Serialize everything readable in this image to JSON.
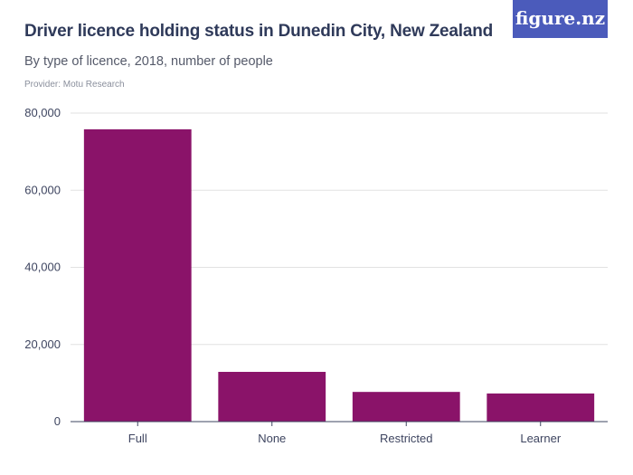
{
  "header": {
    "title": "Driver licence holding status in Dunedin City, New Zealand",
    "subtitle": "By type of licence, 2018, number of people",
    "provider": "Provider: Motu Research",
    "logo": "figure.nz"
  },
  "colors": {
    "bar": "#8a1369",
    "grid": "#e2e2e2",
    "axis": "#3e4560",
    "logo_bg": "#4b5bbb"
  },
  "chart_data": {
    "type": "bar",
    "categories": [
      "Full",
      "None",
      "Restricted",
      "Learner"
    ],
    "values": [
      75800,
      12900,
      7700,
      7300
    ],
    "ylim": [
      0,
      80000
    ],
    "yticks": [
      0,
      20000,
      40000,
      60000,
      80000
    ],
    "ytick_labels": [
      "0",
      "20,000",
      "40,000",
      "60,000",
      "80,000"
    ],
    "grid": true
  }
}
